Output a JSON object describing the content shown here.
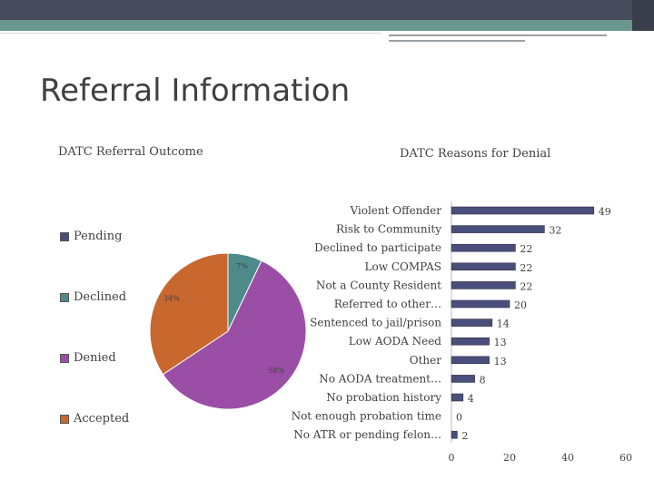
{
  "slide": {
    "title": "Referral Information"
  },
  "legend": {
    "items": [
      {
        "label": "Pending",
        "color": "#4a4e7a"
      },
      {
        "label": "Declined",
        "color": "#4e8a8a"
      },
      {
        "label": "Denied",
        "color": "#9b4ea6"
      },
      {
        "label": "Accepted",
        "color": "#c8682e"
      }
    ]
  },
  "chart_data": [
    {
      "type": "pie",
      "title": "DATC Referral Outcome",
      "categories": [
        "Pending",
        "Declined",
        "Denied",
        "Accepted"
      ],
      "values": [
        0,
        7,
        58,
        34
      ],
      "value_labels": [
        "",
        "7%",
        "58%",
        "34%"
      ],
      "colors": [
        "#4a4e7a",
        "#4e8a8a",
        "#9b4ea6",
        "#c8682e"
      ],
      "legend_position": "left"
    },
    {
      "type": "bar",
      "orientation": "horizontal",
      "title": "DATC Reasons for Denial",
      "categories": [
        "Violent Offender",
        "Risk to Community",
        "Declined to participate",
        "Low COMPAS",
        "Not a County Resident",
        "Referred to other…",
        "Sentenced to jail/prison",
        "Low AODA Need",
        "Other",
        "No AODA treatment…",
        "No probation history",
        "Not enough probation time",
        "No ATR or pending felon…"
      ],
      "values": [
        49,
        32,
        22,
        22,
        22,
        20,
        14,
        13,
        13,
        8,
        4,
        0,
        2
      ],
      "xlim": [
        0,
        60
      ],
      "xticks": [
        "0",
        "20",
        "40",
        "60"
      ],
      "bar_color": "#4a4e7a"
    }
  ]
}
